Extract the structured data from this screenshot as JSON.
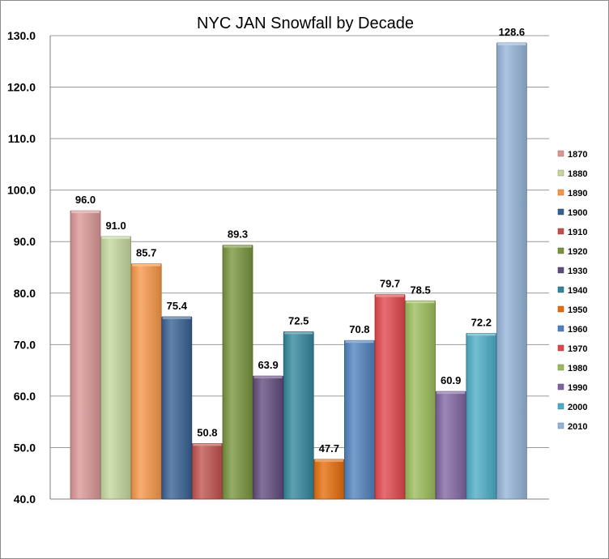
{
  "chart_data": {
    "type": "bar",
    "title": "NYC JAN Snowfall by Decade",
    "xlabel": "",
    "ylabel": "",
    "ylim": [
      40,
      130
    ],
    "yticks": [
      "40.0",
      "50.0",
      "60.0",
      "70.0",
      "80.0",
      "90.0",
      "100.0",
      "110.0",
      "120.0",
      "130.0"
    ],
    "grid": true,
    "legend_position": "right",
    "categories": [
      "1870",
      "1880",
      "1890",
      "1900",
      "1910",
      "1920",
      "1930",
      "1940",
      "1950",
      "1960",
      "1970",
      "1980",
      "1990",
      "2000",
      "2010"
    ],
    "values": [
      96.0,
      91.0,
      85.7,
      75.4,
      50.8,
      89.3,
      63.9,
      72.5,
      47.7,
      70.8,
      79.7,
      78.5,
      60.9,
      72.2,
      128.6
    ],
    "labels": [
      "96.0",
      "91.0",
      "85.7",
      "75.4",
      "50.8",
      "89.3",
      "63.9",
      "72.5",
      "47.7",
      "70.8",
      "79.7",
      "78.5",
      "60.9",
      "72.2",
      "128.6"
    ],
    "colors": [
      "#d99694",
      "#c3d69b",
      "#f79646",
      "#366092",
      "#c0504d",
      "#77933c",
      "#604a7b",
      "#31859c",
      "#e46c0a",
      "#4f81bd",
      "#e0454a",
      "#9bbb59",
      "#8064a2",
      "#4bacc6",
      "#95b3d7"
    ]
  }
}
